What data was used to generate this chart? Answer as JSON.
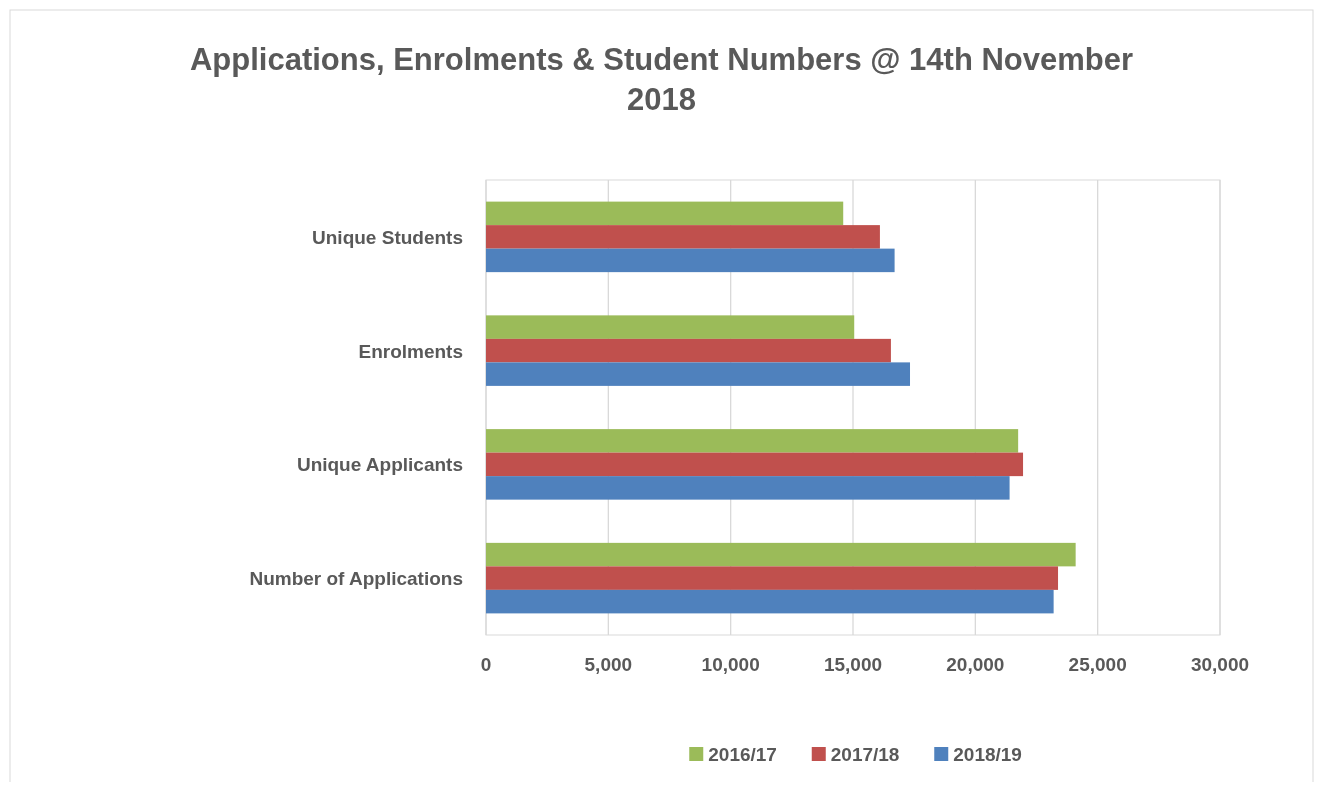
{
  "chart_data": {
    "type": "bar",
    "orientation": "horizontal",
    "title": "Applications, Enrolments & Student Numbers @ 14th November 2018",
    "categories": [
      "Unique Students",
      "Enrolments",
      "Unique Applicants",
      "Number of Applications"
    ],
    "series": [
      {
        "name": "2016/17",
        "color": "#9bbb59",
        "values": [
          14600,
          15050,
          21750,
          24100
        ]
      },
      {
        "name": "2017/18",
        "color": "#c0504d",
        "values": [
          16100,
          16550,
          21950,
          23380
        ]
      },
      {
        "name": "2018/19",
        "color": "#4f81bd",
        "values": [
          16700,
          17330,
          21400,
          23200
        ]
      }
    ],
    "xlim": [
      0,
      30000
    ],
    "xticks": [
      {
        "value": 0,
        "label": "0"
      },
      {
        "value": 5000,
        "label": "5,000"
      },
      {
        "value": 10000,
        "label": "10,000"
      },
      {
        "value": 15000,
        "label": "15,000"
      },
      {
        "value": 20000,
        "label": "20,000"
      },
      {
        "value": 25000,
        "label": "25,000"
      },
      {
        "value": 30000,
        "label": "30,000"
      }
    ],
    "grid": "x",
    "legend": "bottom"
  }
}
